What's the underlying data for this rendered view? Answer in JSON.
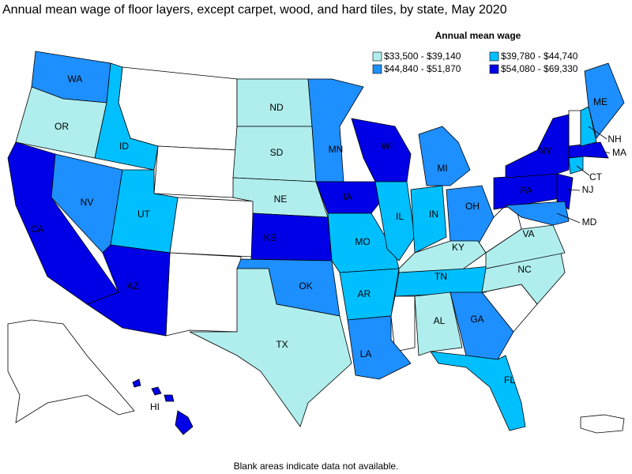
{
  "title": "Annual mean wage of floor layers, except carpet, wood, and hard tiles, by state, May 2020",
  "legend": {
    "title": "Annual mean wage",
    "items": [
      {
        "label": "$33,500 - $39,140",
        "color": "#b0eeee",
        "states": [
          "OR",
          "ND",
          "SD",
          "NE",
          "TX",
          "KY",
          "VA",
          "NC",
          "AL"
        ]
      },
      {
        "label": "$39,780 - $44,740",
        "color": "#00bfff",
        "states": [
          "ID",
          "UT",
          "IL",
          "IN",
          "TN",
          "FL",
          "CT",
          "NH",
          "MO",
          "AR"
        ]
      },
      {
        "label": "$44,840 - $51,870",
        "color": "#1e8fff",
        "states": [
          "WA",
          "MN",
          "NV",
          "MI",
          "OH",
          "OK",
          "GA",
          "LA",
          "ME",
          "MD"
        ]
      },
      {
        "label": "$54,080 - $69,330",
        "color": "#0000e6",
        "states": [
          "CA",
          "AZ",
          "KS",
          "IA",
          "WI",
          "NY",
          "PA",
          "NJ",
          "MA",
          "HI"
        ]
      }
    ]
  },
  "footnote": "Blank areas indicate data not available."
}
